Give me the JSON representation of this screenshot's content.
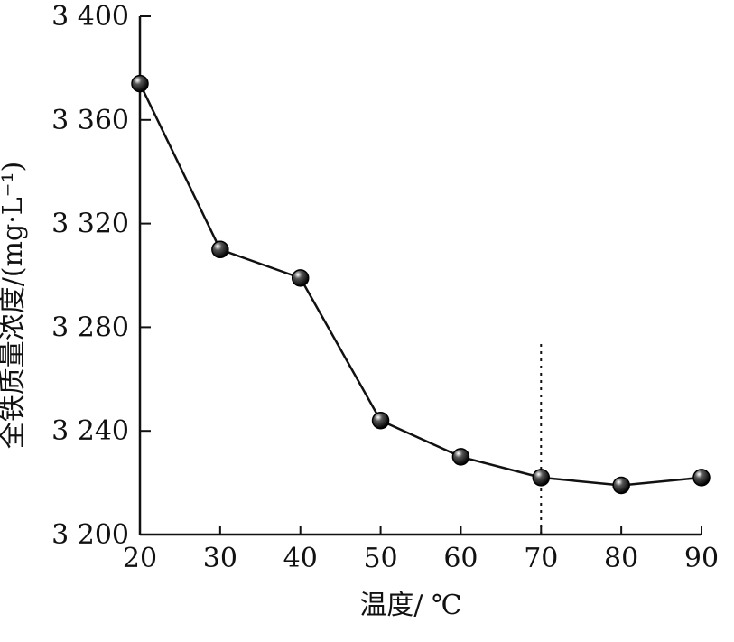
{
  "chart_data": {
    "type": "line",
    "title": "",
    "xlabel": "温度/ ℃",
    "ylabel": "全铁质量浓度/(mg·L⁻¹)",
    "x": [
      20,
      30,
      40,
      50,
      60,
      70,
      80,
      90
    ],
    "series": [
      {
        "values": [
          3374,
          3310,
          3299,
          3244,
          3230,
          3222,
          3219,
          3222
        ]
      }
    ],
    "xlim": [
      20,
      90
    ],
    "ylim": [
      3200,
      3400
    ],
    "xticks": [
      20,
      30,
      40,
      50,
      60,
      70,
      80,
      90
    ],
    "xtick_labels": [
      "20",
      "30",
      "40",
      "50",
      "60",
      "70",
      "80",
      "90"
    ],
    "yticks": [
      3200,
      3240,
      3280,
      3320,
      3360,
      3400
    ],
    "ytick_labels": [
      "3 200",
      "3 240",
      "3 280",
      "3 320",
      "3 360",
      "3 400"
    ],
    "reference_line": {
      "x": 70,
      "style": "dotted"
    },
    "grid": false,
    "legend": "none",
    "colors": {
      "line": "#111111",
      "marker": "#111111"
    }
  }
}
